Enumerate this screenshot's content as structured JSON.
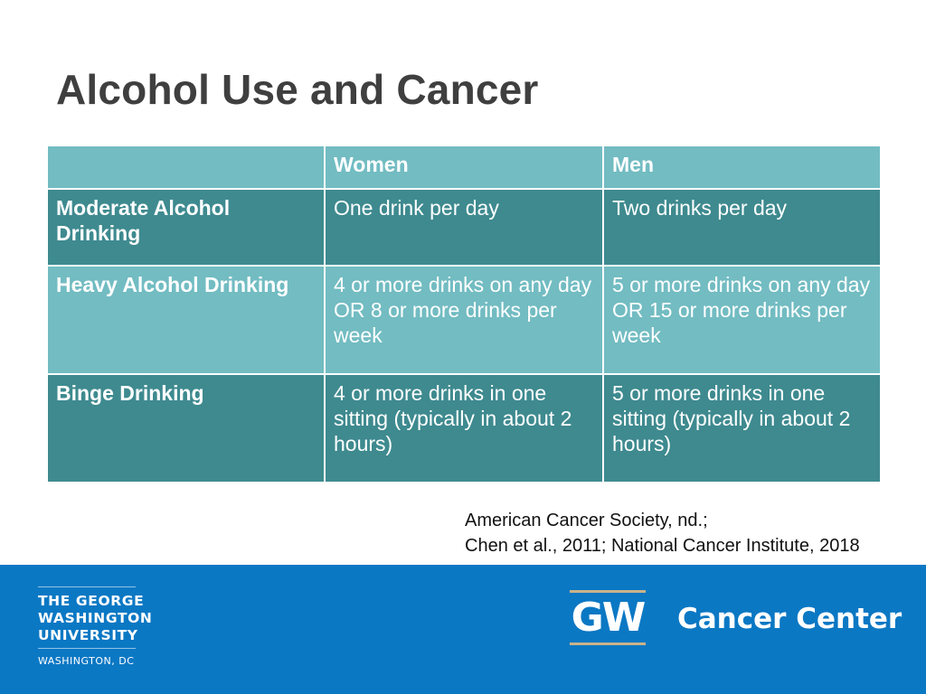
{
  "slide": {
    "title": "Alcohol Use and Cancer"
  },
  "table": {
    "headers": [
      "",
      "Women",
      "Men"
    ],
    "rows": [
      {
        "label": "Moderate Alcohol Drinking",
        "women": "One drink per day",
        "men": "Two drinks per day"
      },
      {
        "label": "Heavy Alcohol Drinking",
        "women": "4 or more drinks on any day OR 8 or more drinks per week",
        "men": "5 or more drinks on any day OR 15 or more drinks per week"
      },
      {
        "label": "Binge Drinking",
        "women": "4 or more drinks in one sitting (typically in about 2 hours)",
        "men": "5 or more drinks in one sitting (typically in about 2 hours)"
      }
    ]
  },
  "citation": {
    "line1": "American Cancer Society, nd.;",
    "line2": "Chen et al., 2011; National Cancer Institute, 2018"
  },
  "footer": {
    "university": {
      "line1": "THE GEORGE",
      "line2": "WASHINGTON",
      "line3": "UNIVERSITY",
      "location": "WASHINGTON, DC"
    },
    "gw_logo": "GW",
    "center_name": "Cancer Center",
    "colors": {
      "footer_bg": "#0b78c4",
      "logo_bars": "#c9b38a"
    }
  },
  "colors": {
    "title": "#3f3f3f",
    "table_light": "#72bcc2",
    "table_dark": "#3e8a8f"
  }
}
